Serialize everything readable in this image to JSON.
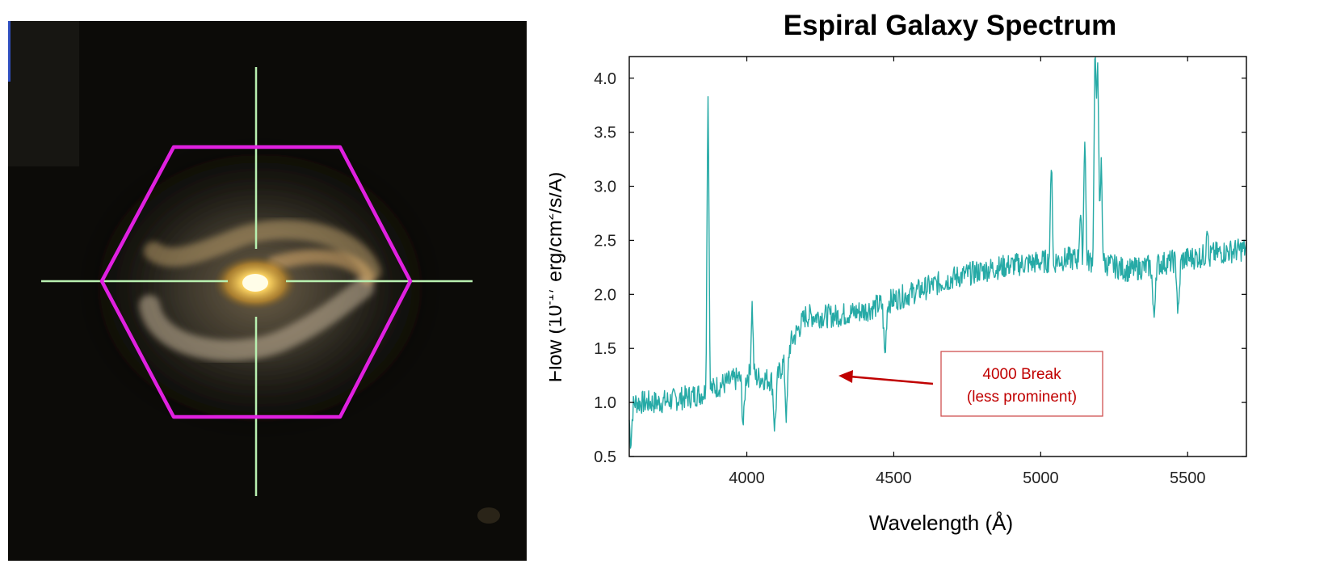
{
  "galaxy_image": {
    "overlay_color": "#e020e0",
    "crosshair_color": "#b8f0b0"
  },
  "chart_data": {
    "type": "line",
    "title": "Espiral Galaxy Spectrum",
    "xlabel": "Wavelength  (Å)",
    "ylabel_parts": [
      "Flow (10",
      "-17",
      " erg/cm",
      "2",
      "/s/Å)"
    ],
    "xlim": [
      3600,
      5700
    ],
    "ylim": [
      0.5,
      4.2
    ],
    "xticks": [
      4000,
      4500,
      5000,
      5500
    ],
    "yticks": [
      0.5,
      1.0,
      1.5,
      2.0,
      2.5,
      3.0,
      3.5,
      4.0
    ],
    "ytick_labels": [
      "0.5",
      "1.0",
      "1.5",
      "2.0",
      "2.5",
      "3.0",
      "3.5",
      "4.0"
    ],
    "grid": false,
    "line_color": "#26aaa6",
    "series": [
      {
        "continuum": [
          [
            3600,
            1.0
          ],
          [
            3700,
            1.0
          ],
          [
            3800,
            1.05
          ],
          [
            3870,
            1.1
          ],
          [
            3900,
            1.15
          ],
          [
            4000,
            1.25
          ],
          [
            4100,
            1.2
          ],
          [
            4150,
            1.55
          ],
          [
            4200,
            1.8
          ],
          [
            4300,
            1.8
          ],
          [
            4400,
            1.85
          ],
          [
            4500,
            1.95
          ],
          [
            4600,
            2.05
          ],
          [
            4700,
            2.15
          ],
          [
            4800,
            2.22
          ],
          [
            4900,
            2.27
          ],
          [
            5000,
            2.3
          ],
          [
            5100,
            2.33
          ],
          [
            5200,
            2.3
          ],
          [
            5300,
            2.22
          ],
          [
            5400,
            2.28
          ],
          [
            5500,
            2.33
          ],
          [
            5600,
            2.38
          ],
          [
            5700,
            2.42
          ]
        ],
        "emission_lines": [
          [
            3868,
            3.85
          ],
          [
            4018,
            1.9
          ],
          [
            5037,
            3.45
          ],
          [
            5135,
            2.75
          ],
          [
            5150,
            3.75
          ],
          [
            5185,
            4.2
          ],
          [
            5194,
            4.2
          ],
          [
            5206,
            3.2
          ],
          [
            5567,
            3.08
          ]
        ],
        "absorption_features": [
          [
            3605,
            0.65
          ],
          [
            3988,
            0.8
          ],
          [
            4095,
            0.78
          ],
          [
            4135,
            0.88
          ],
          [
            4470,
            1.44
          ],
          [
            5040,
            2.05
          ],
          [
            5150,
            2.05
          ],
          [
            5385,
            1.78
          ],
          [
            5468,
            1.82
          ],
          [
            5568,
            1.95
          ]
        ]
      }
    ],
    "annotation": {
      "text_line1": "4000 Break",
      "text_line2": "(less prominent)",
      "color": "#c00000",
      "arrow_target": [
        4260,
        1.23
      ]
    }
  }
}
